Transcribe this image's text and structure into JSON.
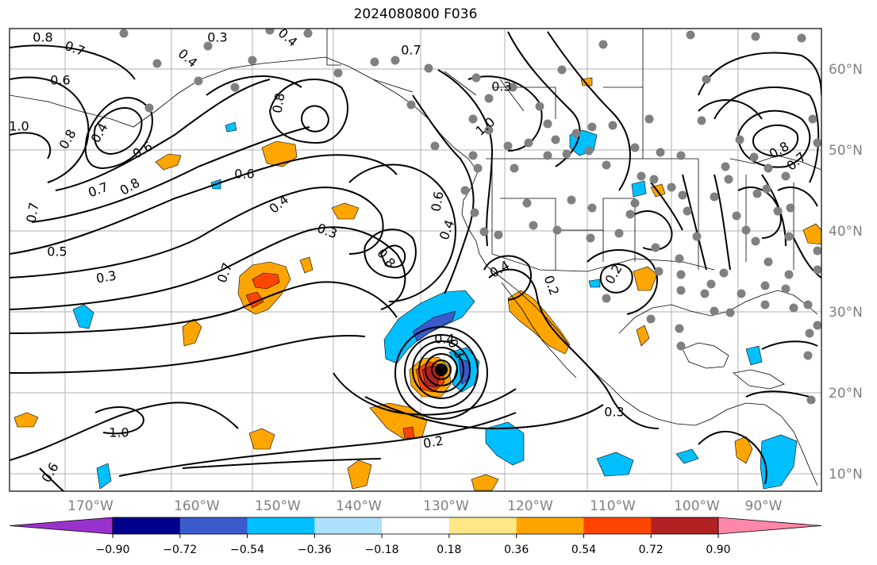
{
  "title": "2024080800 F036",
  "map": {
    "lon_ticks": [
      "170°W",
      "160°W",
      "150°W",
      "140°W",
      "130°W",
      "120°W",
      "110°W",
      "100°W",
      "90°W"
    ],
    "lat_ticks": [
      "60°N",
      "50°N",
      "40°N",
      "30°N",
      "20°N",
      "10°N"
    ],
    "storm_center_symbol": "hurricane-center",
    "contour_labels": [
      "0.8",
      "0.3",
      "0.7",
      "0.4",
      "0.6",
      "0.4",
      "0.7",
      "1.0",
      "0.8",
      "0.4",
      "0.8",
      "0.6",
      "0.7",
      "0.8",
      "0.6",
      "0.4",
      "0.3",
      "0.7",
      "0.5",
      "0.3",
      "0.7",
      "0.8",
      "0.6",
      "0.4",
      "0.4",
      "0.2",
      "0.4",
      "0.3",
      "0.2",
      "0.3",
      "0.2",
      "1.0",
      "0.6",
      "0.3",
      "1.0",
      "0.8",
      "0.7"
    ]
  },
  "colorbar": {
    "colors": [
      "#9932cc",
      "#00008b",
      "#3a5bcc",
      "#00bfff",
      "#aee0ff",
      "#ffffff",
      "#ffe885",
      "#ffa500",
      "#ff4500",
      "#b22222",
      "#ff88aa"
    ],
    "tick_labels": [
      "−0.90",
      "−0.72",
      "−0.54",
      "−0.36",
      "−0.18",
      "0.18",
      "0.36",
      "0.54",
      "0.72",
      "0.90"
    ]
  }
}
